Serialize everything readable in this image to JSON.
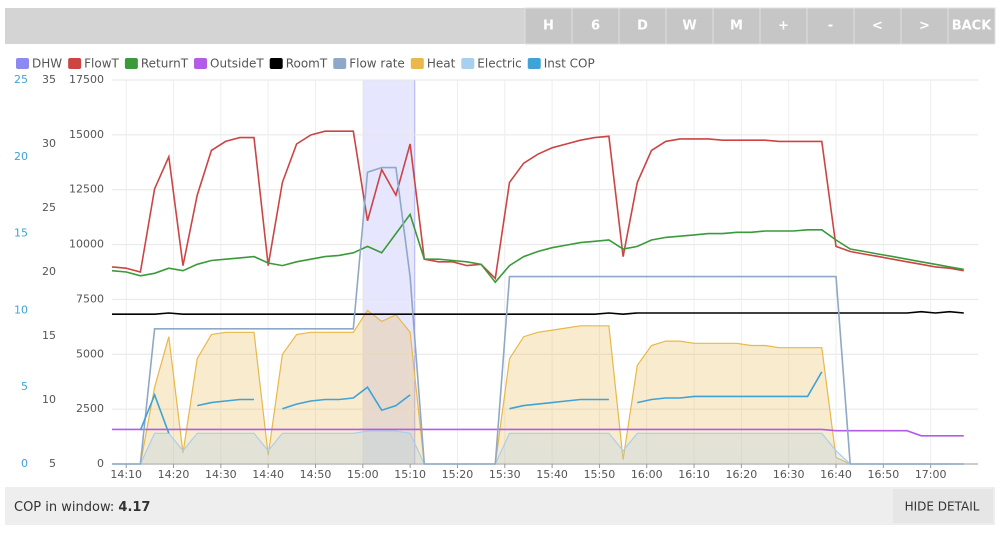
{
  "toolbar": {
    "buttons": [
      "H",
      "6",
      "D",
      "W",
      "M",
      "+",
      "-",
      "<",
      ">",
      "BACK"
    ]
  },
  "chart_data": {
    "type": "line",
    "x": [
      "14:07",
      "14:10",
      "14:13",
      "14:16",
      "14:19",
      "14:22",
      "14:25",
      "14:28",
      "14:31",
      "14:34",
      "14:37",
      "14:40",
      "14:43",
      "14:46",
      "14:49",
      "14:52",
      "14:55",
      "14:58",
      "15:01",
      "15:04",
      "15:07",
      "15:10",
      "15:13",
      "15:16",
      "15:19",
      "15:22",
      "15:25",
      "15:28",
      "15:31",
      "15:34",
      "15:37",
      "15:40",
      "15:43",
      "15:46",
      "15:49",
      "15:52",
      "15:55",
      "15:58",
      "16:01",
      "16:04",
      "16:07",
      "16:10",
      "16:13",
      "16:16",
      "16:19",
      "16:22",
      "16:25",
      "16:28",
      "16:31",
      "16:34",
      "16:37",
      "16:40",
      "16:43",
      "16:46",
      "16:49",
      "16:52",
      "16:55",
      "16:58",
      "17:01",
      "17:04",
      "17:07"
    ],
    "xlim": [
      "14:07",
      "17:10"
    ],
    "xticks": [
      "14:10",
      "14:20",
      "14:30",
      "14:40",
      "14:50",
      "15:00",
      "15:10",
      "15:20",
      "15:30",
      "15:40",
      "15:50",
      "16:00",
      "16:10",
      "16:20",
      "16:30",
      "16:40",
      "16:50",
      "17:00"
    ],
    "ylim": [
      0,
      25
    ],
    "yticks": [
      0,
      5,
      10,
      15,
      20,
      25
    ],
    "ycolor": "#3fa3d8",
    "y2lim": [
      5,
      35
    ],
    "y2ticks": [
      5,
      10,
      15,
      20,
      25,
      30,
      35
    ],
    "y3lim": [
      0,
      17500
    ],
    "y3ticks": [
      0,
      2500,
      5000,
      7500,
      10000,
      12500,
      15000,
      17500
    ],
    "grid": true,
    "series": [
      {
        "name": "DHW",
        "color": "#8a8af0",
        "kind": "band",
        "window": [
          "15:00",
          "15:11"
        ]
      },
      {
        "name": "FlowT",
        "color": "#cc4444",
        "kind": "line",
        "axis": "y2",
        "values": [
          20.4,
          20.3,
          20.0,
          26.5,
          29.0,
          20.5,
          26,
          29.5,
          30.2,
          30.5,
          30.5,
          20.5,
          27,
          30,
          30.7,
          31,
          31,
          31,
          24,
          28,
          26,
          30,
          21,
          20.8,
          20.8,
          20.5,
          20.6,
          19.5,
          27,
          28.5,
          29.2,
          29.7,
          30,
          30.3,
          30.5,
          30.6,
          21.2,
          27,
          29.5,
          30.2,
          30.4,
          30.4,
          30.4,
          30.3,
          30.3,
          30.3,
          30.3,
          30.2,
          30.2,
          30.2,
          30.2,
          22,
          21.6,
          21.4,
          21.2,
          21.0,
          20.8,
          20.6,
          20.4,
          20.3,
          20.1
        ]
      },
      {
        "name": "ReturnT",
        "color": "#3a9a3a",
        "kind": "line",
        "axis": "y2",
        "values": [
          20.1,
          20.0,
          19.7,
          19.9,
          20.3,
          20.1,
          20.6,
          20.9,
          21.0,
          21.1,
          21.2,
          20.7,
          20.5,
          20.8,
          21.0,
          21.2,
          21.3,
          21.5,
          22,
          21.5,
          23,
          24.5,
          21.0,
          21.0,
          20.9,
          20.8,
          20.6,
          19.2,
          20.5,
          21.2,
          21.6,
          21.9,
          22.1,
          22.3,
          22.4,
          22.5,
          21.8,
          22.0,
          22.5,
          22.7,
          22.8,
          22.9,
          23.0,
          23.0,
          23.1,
          23.1,
          23.2,
          23.2,
          23.2,
          23.3,
          23.3,
          22.5,
          21.8,
          21.6,
          21.4,
          21.2,
          21.0,
          20.8,
          20.6,
          20.4,
          20.2
        ]
      },
      {
        "name": "OutsideT",
        "color": "#b25ce8",
        "kind": "line",
        "axis": "y2",
        "values": [
          7.7,
          7.7,
          7.7,
          7.7,
          7.7,
          7.7,
          7.7,
          7.7,
          7.7,
          7.7,
          7.7,
          7.7,
          7.7,
          7.7,
          7.7,
          7.7,
          7.7,
          7.7,
          7.7,
          7.7,
          7.7,
          7.7,
          7.7,
          7.7,
          7.7,
          7.7,
          7.7,
          7.7,
          7.7,
          7.7,
          7.7,
          7.7,
          7.7,
          7.7,
          7.7,
          7.7,
          7.7,
          7.7,
          7.7,
          7.7,
          7.7,
          7.7,
          7.7,
          7.7,
          7.7,
          7.7,
          7.7,
          7.7,
          7.7,
          7.7,
          7.7,
          7.6,
          7.6,
          7.6,
          7.6,
          7.6,
          7.6,
          7.2,
          7.2,
          7.2,
          7.2
        ]
      },
      {
        "name": "RoomT",
        "color": "#000000",
        "kind": "line",
        "axis": "y2",
        "values": [
          16.7,
          16.7,
          16.7,
          16.7,
          16.8,
          16.7,
          16.7,
          16.7,
          16.7,
          16.7,
          16.7,
          16.7,
          16.7,
          16.7,
          16.7,
          16.7,
          16.7,
          16.7,
          16.7,
          16.7,
          16.7,
          16.7,
          16.7,
          16.7,
          16.7,
          16.7,
          16.7,
          16.7,
          16.7,
          16.7,
          16.7,
          16.7,
          16.7,
          16.7,
          16.7,
          16.8,
          16.7,
          16.8,
          16.8,
          16.8,
          16.8,
          16.8,
          16.8,
          16.8,
          16.8,
          16.8,
          16.8,
          16.8,
          16.8,
          16.8,
          16.8,
          16.8,
          16.8,
          16.8,
          16.8,
          16.8,
          16.8,
          16.9,
          16.8,
          16.9,
          16.8
        ]
      },
      {
        "name": "Flow rate",
        "color": "#8fa8c8",
        "kind": "line",
        "axis": "y",
        "values": [
          0,
          0,
          0,
          8.8,
          8.8,
          8.8,
          8.8,
          8.8,
          8.8,
          8.8,
          8.8,
          8.8,
          8.8,
          8.8,
          8.8,
          8.8,
          8.8,
          8.8,
          19.0,
          19.3,
          19.3,
          12.2,
          0,
          0,
          0,
          0,
          0,
          0,
          12.2,
          12.2,
          12.2,
          12.2,
          12.2,
          12.2,
          12.2,
          12.2,
          12.2,
          12.2,
          12.2,
          12.2,
          12.2,
          12.2,
          12.2,
          12.2,
          12.2,
          12.2,
          12.2,
          12.2,
          12.2,
          12.2,
          12.2,
          12.2,
          0,
          0,
          0,
          0,
          0,
          0,
          0,
          0,
          0
        ]
      },
      {
        "name": "Heat",
        "color": "#e8b84a",
        "kind": "area",
        "axis": "y3",
        "values": [
          0,
          0,
          0,
          3500,
          5800,
          500,
          4800,
          5900,
          6000,
          6000,
          6000,
          400,
          5000,
          5900,
          6000,
          6000,
          6000,
          6000,
          7000,
          6500,
          6800,
          6000,
          0,
          0,
          0,
          0,
          0,
          0,
          4800,
          5800,
          6000,
          6100,
          6200,
          6300,
          6300,
          6300,
          200,
          4500,
          5400,
          5600,
          5600,
          5500,
          5500,
          5500,
          5500,
          5400,
          5400,
          5300,
          5300,
          5300,
          5300,
          300,
          0,
          0,
          0,
          0,
          0,
          0,
          0,
          0,
          0
        ]
      },
      {
        "name": "Electric",
        "color": "#a8cfee",
        "kind": "area",
        "axis": "y3",
        "values": [
          0,
          0,
          0,
          1400,
          1400,
          600,
          1400,
          1400,
          1400,
          1400,
          1400,
          600,
          1400,
          1400,
          1400,
          1400,
          1400,
          1400,
          1500,
          1500,
          1500,
          1400,
          0,
          0,
          0,
          0,
          0,
          0,
          1400,
          1400,
          1400,
          1400,
          1400,
          1400,
          1400,
          1400,
          600,
          1400,
          1400,
          1400,
          1400,
          1400,
          1400,
          1400,
          1400,
          1400,
          1400,
          1400,
          1400,
          1400,
          1400,
          600,
          0,
          0,
          0,
          0,
          0,
          0,
          0,
          0,
          0
        ]
      },
      {
        "name": "Inst COP",
        "color": "#3fa3d8",
        "kind": "line",
        "axis": "y",
        "values": [
          null,
          null,
          2.2,
          4.5,
          2.0,
          null,
          3.8,
          4.0,
          4.1,
          4.2,
          4.2,
          null,
          3.6,
          3.9,
          4.1,
          4.2,
          4.2,
          4.3,
          5.0,
          3.5,
          3.8,
          4.5,
          null,
          null,
          null,
          null,
          null,
          null,
          3.6,
          3.8,
          3.9,
          4.0,
          4.1,
          4.2,
          4.2,
          4.2,
          null,
          4.0,
          4.2,
          4.3,
          4.3,
          4.4,
          4.4,
          4.4,
          4.4,
          4.4,
          4.4,
          4.4,
          4.4,
          4.4,
          6.0,
          null,
          null,
          null,
          null,
          null,
          null,
          null,
          null,
          null,
          null
        ]
      }
    ]
  },
  "footer": {
    "cop_label": "COP in window:",
    "cop_value": 4.17,
    "hide": "HIDE DETAIL"
  }
}
